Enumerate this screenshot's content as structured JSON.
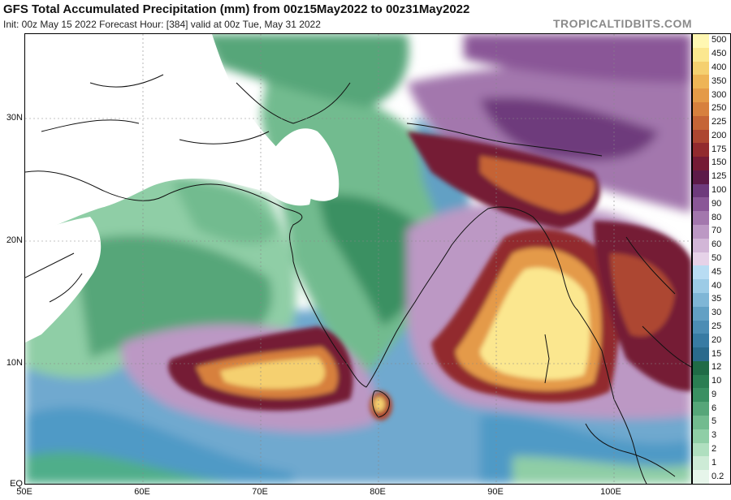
{
  "header": {
    "title": "GFS Total Accumulated Precipitation (mm) from 00z15May2022 to 00z31May2022",
    "subtitle": "Init: 00z May 15 2022   Forecast Hour: [384]   valid at 00z Tue, May 31 2022",
    "brand": "TROPICALTIDBITS.COM"
  },
  "axes": {
    "lat_labels": [
      "30N",
      "20N",
      "10N",
      "EQ"
    ],
    "lon_labels": [
      "50E",
      "60E",
      "70E",
      "80E",
      "90E",
      "100E"
    ]
  },
  "colorbar": {
    "levels": [
      {
        "label": "500",
        "color": "#fff7b2"
      },
      {
        "label": "450",
        "color": "#fbe78f"
      },
      {
        "label": "400",
        "color": "#f5d070"
      },
      {
        "label": "350",
        "color": "#eeb456"
      },
      {
        "label": "300",
        "color": "#e49a48"
      },
      {
        "label": "250",
        "color": "#d7803e"
      },
      {
        "label": "225",
        "color": "#c56436"
      },
      {
        "label": "200",
        "color": "#ad4631"
      },
      {
        "label": "175",
        "color": "#922a2e"
      },
      {
        "label": "150",
        "color": "#751a35"
      },
      {
        "label": "125",
        "color": "#5d1a48"
      },
      {
        "label": "100",
        "color": "#6e3a7c"
      },
      {
        "label": "90",
        "color": "#8a5797"
      },
      {
        "label": "80",
        "color": "#a377ad"
      },
      {
        "label": "70",
        "color": "#bc98c4"
      },
      {
        "label": "60",
        "color": "#d2b6d7"
      },
      {
        "label": "50",
        "color": "#e6d2e8"
      },
      {
        "label": "45",
        "color": "#b8dcf3"
      },
      {
        "label": "40",
        "color": "#9ccbe6"
      },
      {
        "label": "35",
        "color": "#7fb6d6"
      },
      {
        "label": "30",
        "color": "#62a0c4"
      },
      {
        "label": "25",
        "color": "#4c8db4"
      },
      {
        "label": "20",
        "color": "#387ba3"
      },
      {
        "label": "15",
        "color": "#2a6a8c"
      },
      {
        "label": "12",
        "color": "#1f6b46"
      },
      {
        "label": "10",
        "color": "#2a7e52"
      },
      {
        "label": "9",
        "color": "#3a9062"
      },
      {
        "label": "6",
        "color": "#56a679"
      },
      {
        "label": "5",
        "color": "#72bb8f"
      },
      {
        "label": "3",
        "color": "#8fcea6"
      },
      {
        "label": "2",
        "color": "#afdfbf"
      },
      {
        "label": "1",
        "color": "#cdebd6"
      },
      {
        "label": "0.2",
        "color": "#e6f5ea"
      }
    ]
  }
}
